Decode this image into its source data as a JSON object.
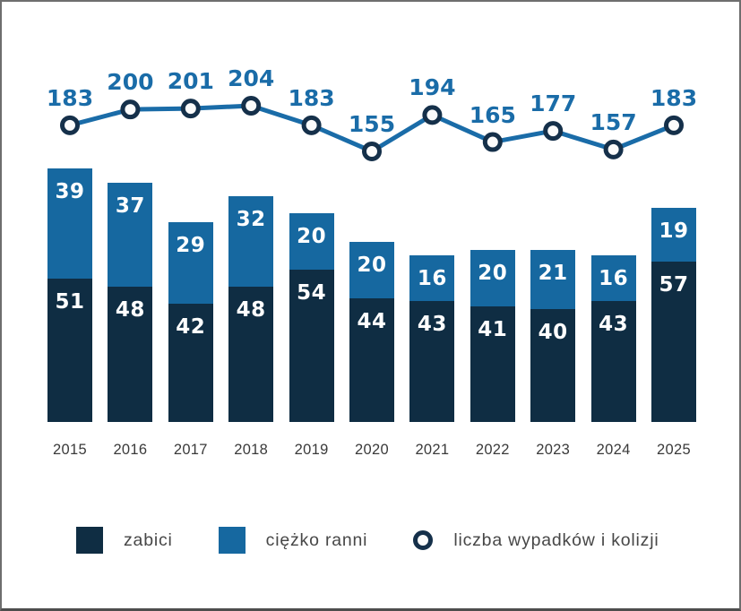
{
  "chart_data": {
    "type": "bar",
    "subtype": "stacked-bars-with-line-overlay",
    "title": "",
    "xlabel": "",
    "ylabel": "",
    "grid": false,
    "value_labels": true,
    "legend_position": "bottom",
    "categories": [
      "2015",
      "2016",
      "2017",
      "2018",
      "2019",
      "2020",
      "2021",
      "2022",
      "2023",
      "2024",
      "2025"
    ],
    "series": [
      {
        "name": "zabici",
        "type": "bar",
        "stack": "bottom",
        "color": "#0f2d43",
        "values": [
          51,
          48,
          42,
          48,
          54,
          44,
          43,
          41,
          40,
          43,
          57
        ]
      },
      {
        "name": "ciężko ranni",
        "type": "bar",
        "stack": "top",
        "color": "#1668a0",
        "values": [
          39,
          37,
          29,
          32,
          20,
          20,
          16,
          20,
          21,
          16,
          19
        ]
      },
      {
        "name": "liczba wypadków i kolizji",
        "type": "line",
        "color": "#1a6ca8",
        "marker": "open-circle",
        "marker_stroke": "#15304a",
        "marker_fill": "#fbfbfb",
        "values": [
          183,
          200,
          201,
          204,
          183,
          155,
          194,
          165,
          177,
          157,
          183
        ]
      }
    ],
    "bar_value_label_color": "#ffffff",
    "line_value_label_color": "#1a6ca8",
    "year_label_color": "#3a3a3a"
  },
  "legend": {
    "items": [
      {
        "id": "zabici",
        "label": "zabici",
        "swatch": "square",
        "color": "#0f2d43"
      },
      {
        "id": "ciezko-ranni",
        "label": "ciężko ranni",
        "swatch": "square",
        "color": "#1668a0"
      },
      {
        "id": "wypadki-kolizje",
        "label": "liczba wypadków i kolizji",
        "swatch": "open-circle",
        "color": "#15304a"
      }
    ]
  }
}
